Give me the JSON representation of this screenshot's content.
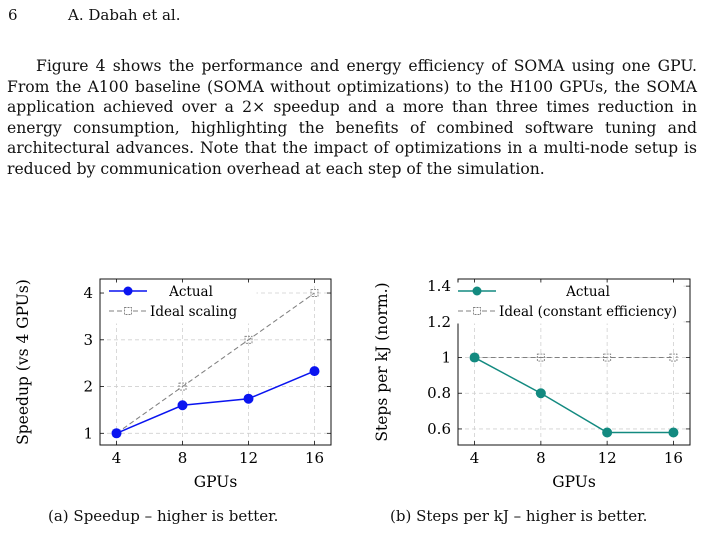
{
  "header": {
    "page_number": "6",
    "authors": "A. Dabah et al."
  },
  "paragraph": "Figure 4 shows the performance and energy efficiency of SOMA using one GPU. From the A100 baseline (SOMA without optimizations) to the H100 GPUs, the SOMA application achieved over a 2× speedup and a more than three times reduction in energy consumption, highlighting the benefits of combined software tuning and architectural advances. Note that the impact of optimizations in a multi-node setup is reduced by communication overhead at each step of the simulation.",
  "colors": {
    "actual_a": "#0a14f0",
    "actual_b": "#138a80",
    "ideal": "#808080"
  },
  "chart_data": [
    {
      "type": "line",
      "caption": "(a) Speedup – higher is better.",
      "xlabel": "GPUs",
      "ylabel": "Speedup (vs 4 GPUs)",
      "x": [
        4,
        8,
        12,
        16
      ],
      "xticks": [
        "4",
        "8",
        "12",
        "16"
      ],
      "yticks": [
        "1",
        "2",
        "3",
        "4"
      ],
      "xlim": [
        3.0,
        17.0
      ],
      "ylim": [
        0.75,
        4.3
      ],
      "grid": true,
      "legend_position": "top-left",
      "series": [
        {
          "name": "Actual",
          "values": [
            1.0,
            1.6,
            1.74,
            2.33
          ]
        },
        {
          "name": "Ideal scaling",
          "values": [
            1,
            2,
            3,
            4
          ]
        }
      ]
    },
    {
      "type": "line",
      "caption": "(b) Steps per kJ – higher is better.",
      "xlabel": "GPUs",
      "ylabel": "Steps per kJ (norm.)",
      "x": [
        4,
        8,
        12,
        16
      ],
      "xticks": [
        "4",
        "8",
        "12",
        "16"
      ],
      "yticks": [
        "0.6",
        "0.8",
        "1",
        "1.2",
        "1.4"
      ],
      "xlim": [
        3.0,
        17.0
      ],
      "ylim": [
        0.51,
        1.44
      ],
      "grid": true,
      "legend_position": "top",
      "series": [
        {
          "name": "Actual",
          "values": [
            1.0,
            0.8,
            0.58,
            0.58
          ]
        },
        {
          "name": "Ideal (constant efficiency)",
          "values": [
            1,
            1,
            1,
            1
          ]
        }
      ]
    }
  ]
}
